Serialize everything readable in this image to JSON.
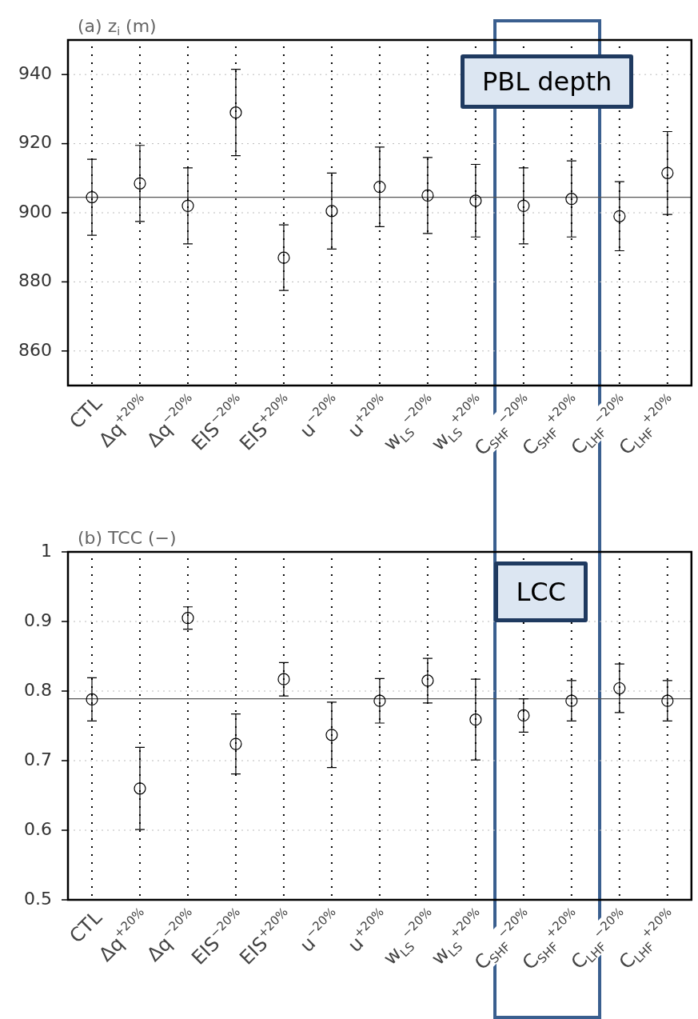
{
  "chart_data": [
    {
      "type": "scatter",
      "title": "(a) z$_{i}$ (m)",
      "categories": [
        "CTL",
        "Δq$^{+20%}$",
        "Δq$^{−20%}$",
        "EIS$^{−20%}$",
        "EIS$^{+20%}$",
        "u$^{−20%}$",
        "u$^{+20%}$",
        "w$_{LS}$$^{−20%}$",
        "w$_{LS}$$^{+20%}$",
        "C$_{SHF}$$^{−20%}$",
        "C$_{SHF}$$^{+20%}$",
        "C$_{LHF}$$^{−20%}$",
        "C$_{LHF}$$^{+20%}$"
      ],
      "values": [
        904.5,
        908.5,
        902,
        929,
        887,
        900.5,
        907.5,
        905,
        903.5,
        902,
        904,
        899,
        911.5
      ],
      "errors": [
        11,
        11,
        11,
        12.5,
        9.5,
        11,
        11.5,
        11,
        10.5,
        11,
        11,
        10,
        12
      ],
      "color": "#000000",
      "marker": "circle",
      "ylim": [
        850,
        950
      ],
      "yticks": [
        860,
        880,
        900,
        920,
        940
      ],
      "grid": true,
      "ref_lines": [
        {
          "axis": "y",
          "value": 904.5,
          "color": "#555555"
        }
      ],
      "annotations": [
        "PBL depth"
      ]
    },
    {
      "type": "scatter",
      "title": "(b) TCC (−)",
      "categories": [
        "CTL",
        "Δq$^{+20%}$",
        "Δq$^{−20%}$",
        "EIS$^{−20%}$",
        "EIS$^{+20%}$",
        "u$^{−20%}$",
        "u$^{+20%}$",
        "w$_{LS}$$^{−20%}$",
        "w$_{LS}$$^{+20%}$",
        "C$_{SHF}$$^{−20%}$",
        "C$_{SHF}$$^{+20%}$",
        "C$_{LHF}$$^{−20%}$",
        "C$_{LHF}$$^{+20%}$"
      ],
      "values": [
        0.788,
        0.66,
        0.905,
        0.724,
        0.817,
        0.737,
        0.786,
        0.815,
        0.759,
        0.765,
        0.786,
        0.804,
        0.786
      ],
      "errors": [
        0.031,
        0.059,
        0.016,
        0.043,
        0.024,
        0.047,
        0.032,
        0.032,
        0.058,
        0.024,
        0.029,
        0.035,
        0.029
      ],
      "color": "#000000",
      "marker": "circle",
      "ylim": [
        0.5,
        1
      ],
      "yticks": [
        0.5,
        0.6,
        0.7,
        0.8,
        0.9,
        1
      ],
      "grid": true,
      "ref_lines": [
        {
          "axis": "y",
          "value": 0.789,
          "color": "#555555"
        }
      ],
      "annotations": [
        "LCC"
      ]
    }
  ]
}
